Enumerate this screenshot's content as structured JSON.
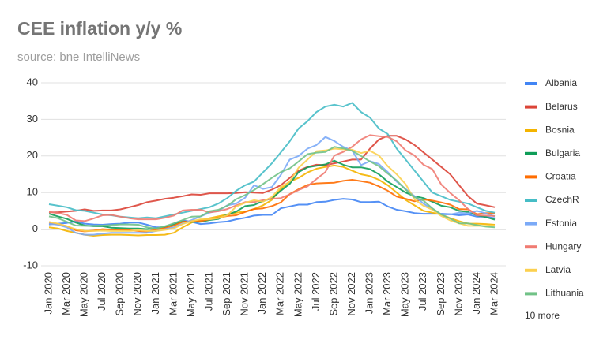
{
  "chart_data": {
    "type": "line",
    "title": "CEE inflation y/y %",
    "subtitle": "source: bne IntelliNews",
    "categories": [
      "Jan 2020",
      null,
      "Mar 2020",
      null,
      "May 2020",
      null,
      "Jul 2020",
      null,
      "Sep 2020",
      null,
      "Nov 2020",
      null,
      "Jan 2021",
      null,
      "Mar 2021",
      null,
      "May 2021",
      null,
      "Jul 2021",
      null,
      "Sep 2021",
      null,
      "Nov 2021",
      null,
      "Jan 2022",
      null,
      "Mar 2022",
      null,
      "May 2022",
      null,
      "Jul 2022",
      null,
      "Sep 2022",
      null,
      "Nov 2022",
      null,
      "Jan 2023",
      null,
      "Mar 2023",
      null,
      "May 2023",
      null,
      "Jul 2023",
      null,
      "Sep 2023",
      null,
      "Nov 2023",
      null,
      "Jan 2024",
      null,
      "Mar 2024"
    ],
    "ylim": [
      -10,
      40
    ],
    "yticks": [
      -10,
      0,
      10,
      20,
      30,
      40
    ],
    "grid": true,
    "legend_more": "10 more",
    "series": [
      {
        "name": "Albania",
        "color": "#4285f4",
        "values": [
          1.3,
          1.5,
          1.7,
          2.1,
          1.5,
          1.3,
          1.2,
          1.4,
          1.5,
          1.8,
          1.8,
          1.2,
          0.5,
          0.5,
          1.5,
          2.4,
          2.0,
          1.4,
          1.6,
          1.9,
          2.1,
          2.7,
          3.1,
          3.7,
          3.9,
          3.9,
          5.7,
          6.2,
          6.7,
          6.7,
          7.4,
          7.5,
          8.0,
          8.3,
          8.1,
          7.4,
          7.4,
          7.5,
          6.2,
          5.3,
          4.9,
          4.4,
          4.2,
          4.2,
          4.2,
          4.1,
          3.8,
          4.0,
          3.4,
          3.4,
          3.0
        ]
      },
      {
        "name": "Belarus",
        "color": "#db4437",
        "values": [
          4.6,
          4.6,
          4.8,
          5.0,
          5.4,
          5.0,
          5.1,
          5.1,
          5.4,
          6.0,
          6.6,
          7.4,
          7.8,
          8.3,
          8.6,
          9.0,
          9.5,
          9.4,
          9.8,
          9.8,
          9.8,
          9.9,
          10.1,
          10.0,
          9.9,
          10.8,
          12.0,
          14.0,
          16.0,
          17.0,
          17.6,
          17.5,
          18.0,
          18.5,
          19.0,
          19.0,
          22.0,
          24.5,
          25.5,
          25.5,
          24.5,
          23.0,
          21.0,
          19.0,
          17.0,
          15.0,
          12.0,
          9.0,
          7.0,
          6.5,
          6.0
        ]
      },
      {
        "name": "Bosnia",
        "color": "#f4b400",
        "values": [
          0.5,
          0.2,
          -0.5,
          -1.0,
          -1.5,
          -1.8,
          -1.6,
          -1.5,
          -1.5,
          -1.6,
          -1.7,
          -1.6,
          -1.6,
          -1.5,
          -1.0,
          0.5,
          1.8,
          2.5,
          3.0,
          3.5,
          4.0,
          4.5,
          4.8,
          5.5,
          6.5,
          8.0,
          11.0,
          13.0,
          14.0,
          15.5,
          16.5,
          17.0,
          17.4,
          17.0,
          16.0,
          15.0,
          14.5,
          13.5,
          12.0,
          10.0,
          8.0,
          6.5,
          5.0,
          4.5,
          4.0,
          3.0,
          2.2,
          1.5,
          1.5,
          1.4,
          1.2
        ]
      },
      {
        "name": "Bulgaria",
        "color": "#0f9d58",
        "values": [
          4.2,
          3.5,
          2.8,
          1.8,
          1.0,
          0.8,
          0.8,
          0.4,
          0.3,
          0.2,
          0.2,
          0.0,
          0.2,
          0.6,
          1.3,
          2.1,
          2.0,
          2.0,
          2.5,
          2.8,
          4.0,
          4.8,
          6.3,
          6.6,
          7.7,
          8.4,
          10.5,
          12.4,
          15.6,
          16.9,
          17.3,
          17.7,
          18.7,
          17.6,
          16.9,
          16.9,
          16.4,
          15.0,
          13.0,
          11.5,
          10.0,
          9.0,
          8.5,
          7.5,
          6.4,
          6.0,
          5.0,
          4.7,
          3.8,
          3.3,
          2.6
        ]
      },
      {
        "name": "Croatia",
        "color": "#ff6d01",
        "values": [
          1.6,
          1.4,
          0.8,
          -0.3,
          -0.6,
          -0.4,
          0.0,
          -0.1,
          -0.2,
          -0.3,
          -0.5,
          -0.7,
          -0.1,
          0.3,
          1.0,
          2.0,
          2.2,
          2.2,
          2.7,
          3.1,
          3.6,
          3.8,
          4.7,
          5.5,
          5.7,
          6.3,
          7.3,
          9.6,
          10.9,
          12.1,
          12.5,
          12.6,
          12.7,
          13.2,
          13.5,
          13.1,
          12.7,
          11.7,
          10.5,
          8.9,
          8.3,
          7.6,
          8.1,
          7.8,
          7.3,
          6.7,
          5.5,
          5.4,
          4.1,
          4.4,
          4.3
        ]
      },
      {
        "name": "CzechR",
        "color": "#46bdc6",
        "values": [
          6.8,
          6.4,
          6.0,
          5.2,
          5.0,
          4.5,
          4.0,
          3.8,
          3.4,
          3.2,
          3.0,
          3.2,
          3.0,
          3.5,
          4.0,
          4.5,
          5.0,
          5.5,
          6.0,
          7.0,
          8.5,
          10.5,
          12.0,
          13.0,
          15.5,
          18.0,
          21.0,
          24.0,
          27.5,
          29.5,
          32.0,
          33.5,
          34.0,
          33.5,
          34.5,
          32.0,
          30.5,
          27.5,
          26.0,
          22.0,
          19.0,
          16.0,
          13.0,
          10.0,
          9.0,
          8.0,
          7.5,
          7.0,
          6.0,
          5.0,
          4.5
        ]
      },
      {
        "name": "Estonia",
        "color": "#7baaf7",
        "values": [
          1.5,
          1.2,
          0.5,
          -1.0,
          -1.5,
          -1.5,
          -1.2,
          -1.0,
          -1.0,
          -1.0,
          -1.0,
          -1.0,
          -0.5,
          0.0,
          0.5,
          1.5,
          2.5,
          3.5,
          4.5,
          5.0,
          6.5,
          7.0,
          8.6,
          12.0,
          11.0,
          11.5,
          14.8,
          19.0,
          20.0,
          22.0,
          23.0,
          25.2,
          24.1,
          22.5,
          21.5,
          17.5,
          18.6,
          17.8,
          15.6,
          13.0,
          11.0,
          9.0,
          7.0,
          5.5,
          4.0,
          4.0,
          4.5,
          4.3,
          5.0,
          4.3,
          3.5
        ]
      },
      {
        "name": "Hungary",
        "color": "#f07b72",
        "values": [
          4.7,
          4.4,
          3.9,
          2.4,
          2.2,
          2.9,
          3.8,
          3.9,
          3.4,
          3.0,
          2.7,
          2.7,
          2.7,
          3.1,
          3.7,
          5.1,
          5.3,
          5.3,
          4.6,
          4.9,
          5.5,
          6.5,
          7.4,
          7.4,
          7.9,
          8.3,
          8.5,
          9.5,
          10.7,
          11.7,
          13.7,
          15.6,
          20.1,
          21.1,
          22.5,
          24.5,
          25.7,
          25.4,
          25.2,
          24.0,
          21.5,
          20.1,
          17.6,
          16.4,
          12.2,
          9.9,
          7.9,
          5.5,
          3.8,
          3.7,
          3.6
        ]
      },
      {
        "name": "Latvia",
        "color": "#fcd04f",
        "values": [
          2.0,
          1.5,
          0.8,
          0.0,
          -0.5,
          -0.5,
          -0.4,
          -0.5,
          -0.5,
          -0.5,
          -0.3,
          -0.5,
          -0.5,
          -0.2,
          0.2,
          1.4,
          2.2,
          2.7,
          2.7,
          3.0,
          3.8,
          6.2,
          7.2,
          7.9,
          7.5,
          8.8,
          11.5,
          13.0,
          16.8,
          19.0,
          21.3,
          21.5,
          22.0,
          21.8,
          21.7,
          20.8,
          21.4,
          20.1,
          17.2,
          15.0,
          12.3,
          8.1,
          6.4,
          5.3,
          3.6,
          2.4,
          1.6,
          0.9,
          0.9,
          0.9,
          1.0
        ]
      },
      {
        "name": "Lithuania",
        "color": "#71c287",
        "values": [
          3.5,
          3.0,
          2.0,
          1.0,
          0.9,
          0.9,
          1.0,
          1.1,
          1.3,
          1.3,
          1.2,
          0.5,
          0.2,
          0.8,
          1.6,
          2.5,
          3.4,
          3.5,
          4.9,
          5.3,
          6.4,
          8.2,
          9.3,
          10.7,
          12.3,
          14.0,
          15.6,
          16.6,
          18.5,
          20.5,
          20.9,
          21.1,
          22.5,
          22.1,
          21.4,
          20.0,
          18.5,
          17.2,
          15.2,
          13.3,
          10.8,
          8.7,
          7.8,
          5.7,
          4.0,
          2.9,
          1.6,
          1.6,
          1.1,
          0.7,
          0.5
        ]
      }
    ]
  }
}
